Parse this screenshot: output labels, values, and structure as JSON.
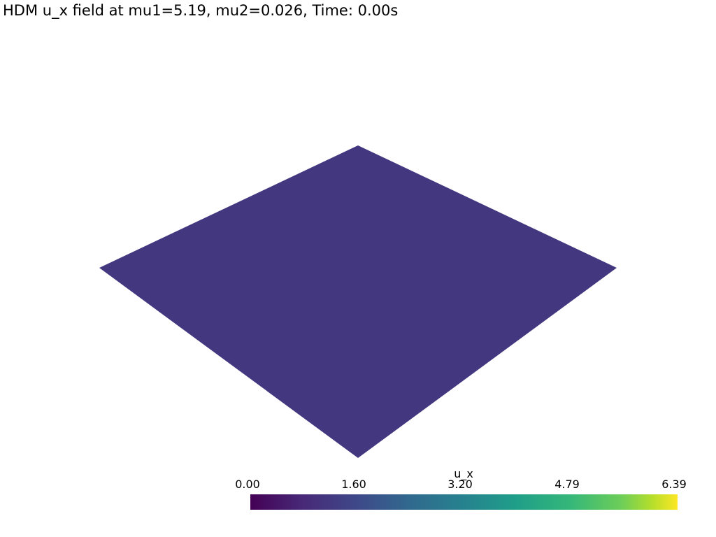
{
  "title": "HDM u_x field at mu1=5.19, mu2=0.026, Time: 0.00s",
  "mesh": {
    "color": "#433880"
  },
  "scalar_bar": {
    "title": "u_x",
    "ticks": [
      "0.00",
      "1.60",
      "3.20",
      "4.79",
      "6.39"
    ],
    "colormap": "viridis"
  }
}
